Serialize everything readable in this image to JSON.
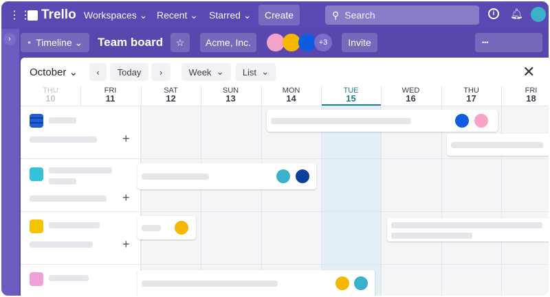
{
  "topbar": {
    "app_name": "Trello",
    "nav": [
      "Workspaces",
      "Recent",
      "Starred"
    ],
    "create": "Create",
    "search_placeholder": "Search"
  },
  "board": {
    "view": "Timeline",
    "title": "Team board",
    "workspace": "Acme, Inc.",
    "member_overflow": "+3",
    "invite": "Invite",
    "more": "•••"
  },
  "calendar": {
    "month": "October",
    "today": "Today",
    "scale": "Week",
    "mode": "List",
    "days": [
      {
        "dow": "THU",
        "num": "10"
      },
      {
        "dow": "FRI",
        "num": "11"
      },
      {
        "dow": "SAT",
        "num": "12"
      },
      {
        "dow": "SUN",
        "num": "13"
      },
      {
        "dow": "MON",
        "num": "14"
      },
      {
        "dow": "TUE",
        "num": "15"
      },
      {
        "dow": "WED",
        "num": "16"
      },
      {
        "dow": "THU",
        "num": "17"
      },
      {
        "dow": "FRI",
        "num": "18"
      }
    ],
    "current_day": "15"
  },
  "colors": {
    "brand": "#5b49b3",
    "today_accent": "#1f7a8c"
  }
}
